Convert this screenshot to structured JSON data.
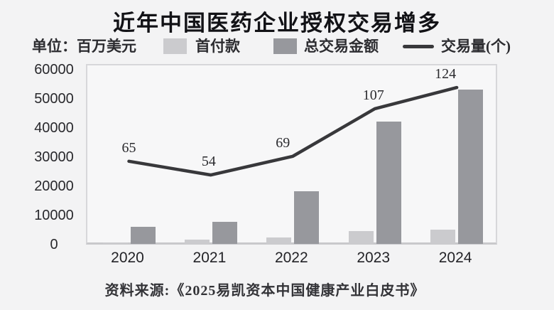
{
  "title": "近年中国医药企业授权交易增多",
  "unit_label": "单位：百万美元",
  "legend": {
    "upfront": {
      "label": "首付款",
      "color": "#cbcbce"
    },
    "total": {
      "label": "总交易金额",
      "color": "#97989d"
    },
    "volume": {
      "label": "交易量(个)",
      "color": "#38383b"
    }
  },
  "source": "资料来源:《2025易凯资本中国健康产业白皮书》",
  "chart_data": {
    "type": "bar+line",
    "categories": [
      "2020",
      "2021",
      "2022",
      "2023",
      "2024"
    ],
    "series": [
      {
        "name": "首付款",
        "type": "bar",
        "color": "#cbcbce",
        "axis": "primary",
        "values": [
          400,
          1500,
          2200,
          4500,
          5000
        ]
      },
      {
        "name": "总交易金额",
        "type": "bar",
        "color": "#97989d",
        "axis": "primary",
        "values": [
          5800,
          7600,
          18000,
          42000,
          53000
        ]
      },
      {
        "name": "交易量(个)",
        "type": "line",
        "color": "#38383b",
        "axis": "secondary",
        "values": [
          65,
          54,
          69,
          107,
          124
        ],
        "point_labels": [
          "65",
          "54",
          "69",
          "107",
          "124"
        ]
      }
    ],
    "title": "近年中国医药企业授权交易增多",
    "unit": "百万美元",
    "xlabel": "",
    "ylabel": "",
    "y_ticks": [
      0,
      10000,
      20000,
      30000,
      40000,
      50000,
      60000
    ],
    "ylim": [
      0,
      60000
    ],
    "secondary_ylim": [
      0,
      140
    ],
    "grid": false,
    "legend_position": "top"
  }
}
